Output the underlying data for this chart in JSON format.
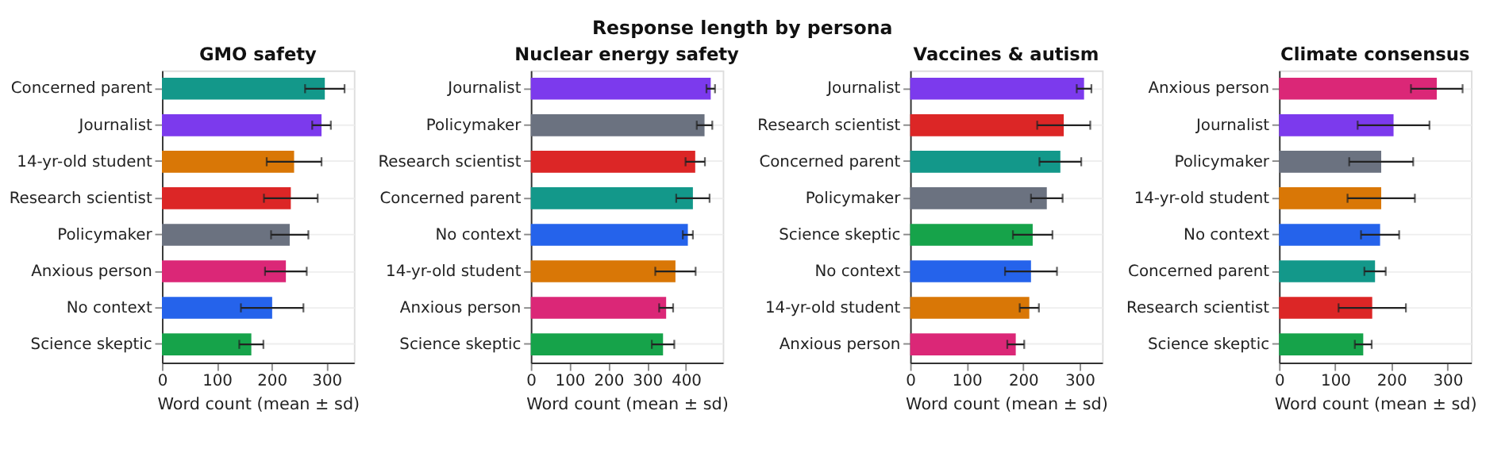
{
  "chart_data": [
    {
      "type": "other",
      "title": "Response length by persona"
    },
    {
      "type": "bar",
      "orientation": "horizontal",
      "title": "GMO safety",
      "xlabel": "Word count (mean ± sd)",
      "grid": "y",
      "xlim": [
        0,
        350
      ],
      "xticks": [
        0,
        100,
        200,
        300
      ],
      "categories": [
        "Concerned parent",
        "Journalist",
        "14-yr-old student",
        "Research scientist",
        "Policymaker",
        "Anxious person",
        "No context",
        "Science skeptic"
      ],
      "values": [
        297,
        291,
        241,
        235,
        233,
        226,
        201,
        163
      ],
      "errors": [
        36,
        17,
        50,
        49,
        34,
        38,
        57,
        22
      ],
      "colors": [
        "#13988a",
        "#7c3aed",
        "#d97706",
        "#dc2626",
        "#6b7280",
        "#db2777",
        "#2563eb",
        "#16a34a"
      ]
    },
    {
      "type": "bar",
      "orientation": "horizontal",
      "title": "Nuclear energy safety",
      "xlabel": "Word count (mean ± sd)",
      "grid": "y",
      "xlim": [
        0,
        495
      ],
      "xticks": [
        0,
        100,
        200,
        300,
        400
      ],
      "categories": [
        "Journalist",
        "Policymaker",
        "Research scientist",
        "Concerned parent",
        "No context",
        "14-yr-old student",
        "Anxious person",
        "Science skeptic"
      ],
      "values": [
        464,
        448,
        424,
        418,
        405,
        373,
        349,
        341
      ],
      "errors": [
        11,
        20,
        25,
        43,
        13,
        52,
        18,
        29
      ],
      "colors": [
        "#7c3aed",
        "#6b7280",
        "#dc2626",
        "#13988a",
        "#2563eb",
        "#d97706",
        "#db2777",
        "#16a34a"
      ]
    },
    {
      "type": "bar",
      "orientation": "horizontal",
      "title": "Vaccines & autism",
      "xlabel": "Word count (mean ± sd)",
      "grid": "y",
      "xlim": [
        0,
        340
      ],
      "xticks": [
        0,
        100,
        200,
        300
      ],
      "categories": [
        "Journalist",
        "Research scientist",
        "Concerned parent",
        "Policymaker",
        "Science skeptic",
        "No context",
        "14-yr-old student",
        "Anxious person"
      ],
      "values": [
        308,
        272,
        266,
        242,
        217,
        214,
        211,
        187
      ],
      "errors": [
        13,
        47,
        37,
        28,
        35,
        46,
        17,
        15
      ],
      "colors": [
        "#7c3aed",
        "#dc2626",
        "#13988a",
        "#6b7280",
        "#16a34a",
        "#2563eb",
        "#d97706",
        "#db2777"
      ]
    },
    {
      "type": "bar",
      "orientation": "horizontal",
      "title": "Climate consensus",
      "xlabel": "Word count (mean ± sd)",
      "grid": "y",
      "xlim": [
        0,
        342
      ],
      "xticks": [
        0,
        100,
        200,
        300
      ],
      "categories": [
        "Anxious person",
        "Journalist",
        "Policymaker",
        "14-yr-old student",
        "No context",
        "Concerned parent",
        "Research scientist",
        "Science skeptic"
      ],
      "values": [
        281,
        204,
        182,
        182,
        180,
        171,
        166,
        150
      ],
      "errors": [
        46,
        64,
        57,
        60,
        34,
        19,
        60,
        15
      ],
      "colors": [
        "#db2777",
        "#7c3aed",
        "#6b7280",
        "#d97706",
        "#2563eb",
        "#13988a",
        "#dc2626",
        "#16a34a"
      ]
    }
  ]
}
